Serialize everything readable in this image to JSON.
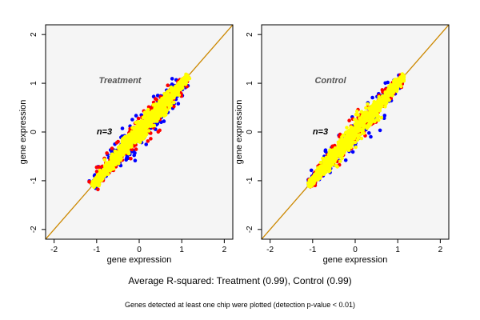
{
  "colors": {
    "background": "#ffffff",
    "panel_bg": "#f5f5f5",
    "axis": "#000000",
    "diagonal": "#cc8800",
    "point_blue": "#0000ff",
    "point_red": "#ff0000",
    "point_yellow": "#ffff00"
  },
  "caption": "Average R-squared: Treatment (0.99), Control (0.99)",
  "footnote": "Genes detected at least one chip were plotted (detection p-value < 0.01)",
  "chart_data": [
    {
      "type": "scatter",
      "title": "Treatment",
      "annotation": "n=3",
      "xlabel": "gene expression",
      "ylabel": "gene expression",
      "xlim": [
        -2.2,
        2.2
      ],
      "ylim": [
        -2.2,
        2.2
      ],
      "xticks": [
        -2,
        -1,
        0,
        1,
        2
      ],
      "yticks": [
        -2,
        -1,
        0,
        1,
        2
      ],
      "reference_line": "y = x",
      "grid": false,
      "series": [
        {
          "color": "#0000ff",
          "x_range": [
            -1.1,
            1.1
          ],
          "spread": 0.22,
          "count": 220
        },
        {
          "color": "#ff0000",
          "x_range": [
            -1.1,
            1.15
          ],
          "spread": 0.16,
          "count": 350
        },
        {
          "color": "#ffff00",
          "x_range": [
            -1.1,
            1.15
          ],
          "spread": 0.11,
          "count": 900
        }
      ]
    },
    {
      "type": "scatter",
      "title": "Control",
      "annotation": "n=3",
      "xlabel": "gene expression",
      "ylabel": "gene expression",
      "xlim": [
        -2.2,
        2.2
      ],
      "ylim": [
        -2.2,
        2.2
      ],
      "xticks": [
        -2,
        -1,
        0,
        1,
        2
      ],
      "yticks": [
        -2,
        -1,
        0,
        1,
        2
      ],
      "reference_line": "y = x",
      "grid": false,
      "series": [
        {
          "color": "#0000ff",
          "x_range": [
            -1.1,
            1.1
          ],
          "spread": 0.2,
          "count": 180
        },
        {
          "color": "#ff0000",
          "x_range": [
            -1.1,
            1.15
          ],
          "spread": 0.15,
          "count": 320
        },
        {
          "color": "#ffff00",
          "x_range": [
            -1.1,
            1.15
          ],
          "spread": 0.11,
          "count": 900
        }
      ]
    }
  ]
}
